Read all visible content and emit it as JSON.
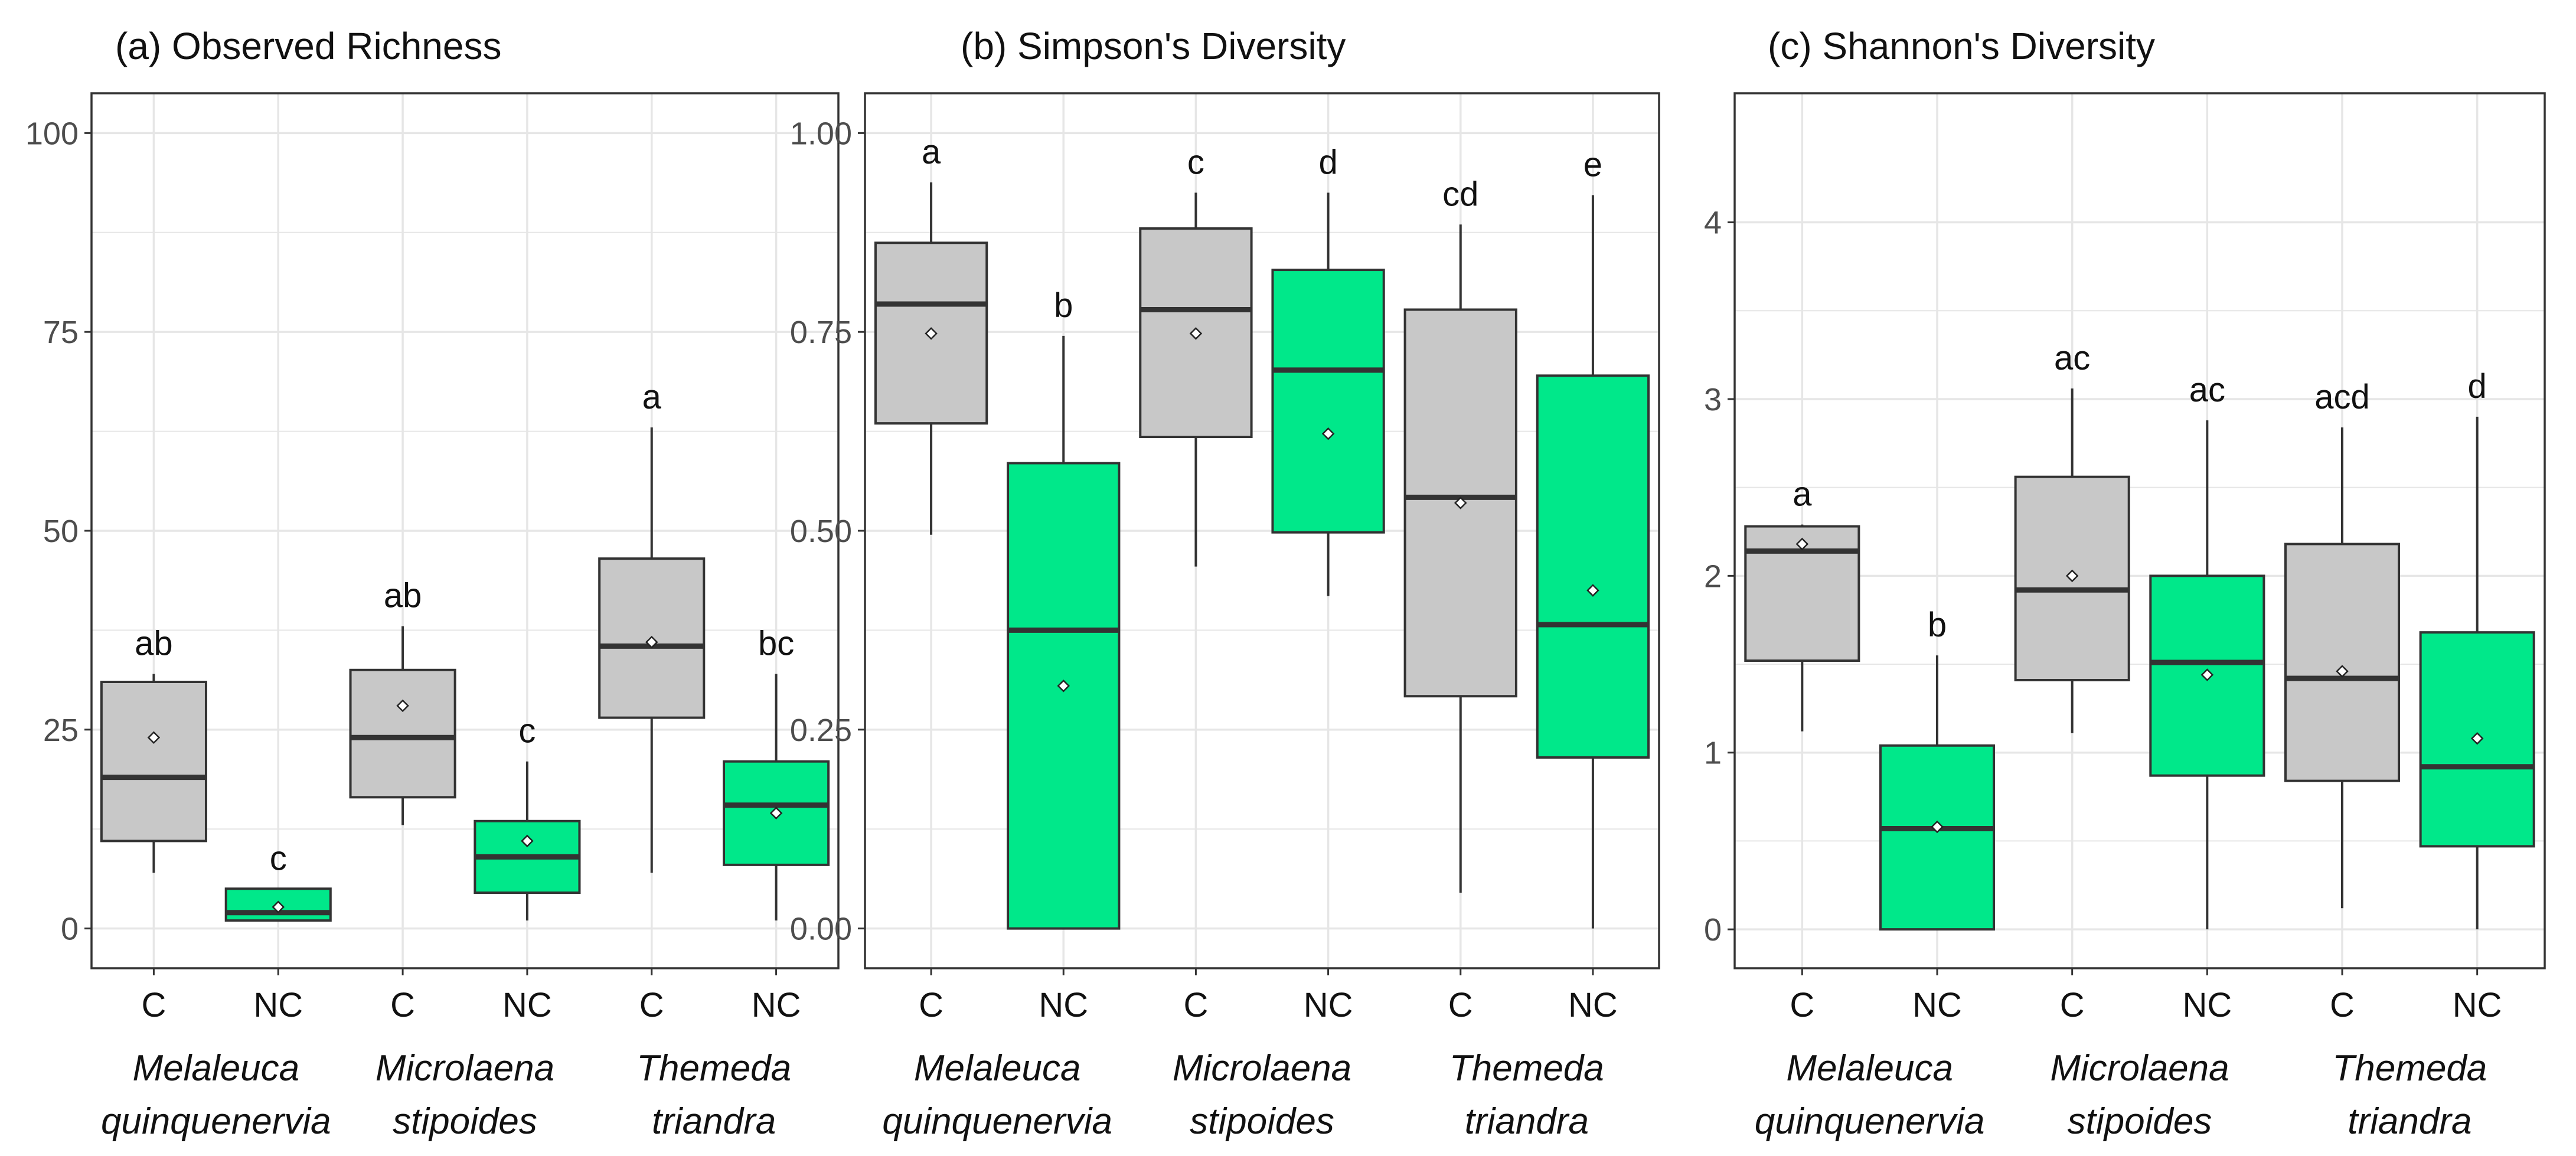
{
  "colors": {
    "control": "#c8c8c8",
    "non_control": "#00e88a",
    "panel_border": "#333333",
    "grid": "#e6e6e6",
    "median": "#333333"
  },
  "chart_data": [
    {
      "type": "box",
      "title": "(a) Observed Richness",
      "ylim": [
        -5,
        105
      ],
      "yticks": [
        0,
        25,
        50,
        75,
        100
      ],
      "ytick_labels": [
        "0",
        "25",
        "50",
        "75",
        "100"
      ],
      "xtick_labels": [
        "C",
        "NC",
        "C",
        "NC",
        "C",
        "NC"
      ],
      "groups": [
        [
          "Melaleuca",
          "quinquenervia"
        ],
        [
          "Microlaena",
          "stipoides"
        ],
        [
          "Themeda",
          "triandra"
        ]
      ],
      "boxes": [
        {
          "label": "C",
          "treatment": "control",
          "whisker_low": 7,
          "q1": 11,
          "median": 19,
          "q3": 31,
          "whisker_high": 32,
          "mean": 24,
          "letter": "ab"
        },
        {
          "label": "NC",
          "treatment": "non_control",
          "whisker_low": 1,
          "q1": 1,
          "median": 2,
          "q3": 5,
          "whisker_high": 5,
          "mean": 2.7,
          "letter": "c"
        },
        {
          "label": "C",
          "treatment": "control",
          "whisker_low": 13,
          "q1": 16.5,
          "median": 24,
          "q3": 32.5,
          "whisker_high": 38,
          "mean": 28,
          "letter": "ab"
        },
        {
          "label": "NC",
          "treatment": "non_control",
          "whisker_low": 1,
          "q1": 4.5,
          "median": 9,
          "q3": 13.5,
          "whisker_high": 21,
          "mean": 11,
          "letter": "c"
        },
        {
          "label": "C",
          "treatment": "control",
          "whisker_low": 7,
          "q1": 26.5,
          "median": 35.5,
          "q3": 46.5,
          "whisker_high": 63,
          "mean": 36,
          "letter": "a"
        },
        {
          "label": "NC",
          "treatment": "non_control",
          "whisker_low": 1,
          "q1": 8,
          "median": 15.5,
          "q3": 21,
          "whisker_high": 32,
          "mean": 14.5,
          "letter": "bc"
        }
      ]
    },
    {
      "type": "box",
      "title": "(b) Simpson's Diversity",
      "ylim": [
        -0.05,
        1.05
      ],
      "yticks": [
        0,
        0.25,
        0.5,
        0.75,
        1
      ],
      "ytick_labels": [
        "0.00",
        "0.25",
        "0.50",
        "0.75",
        "1.00"
      ],
      "xtick_labels": [
        "C",
        "NC",
        "C",
        "NC",
        "C",
        "NC"
      ],
      "groups": [
        [
          "Melaleuca",
          "quinquenervia"
        ],
        [
          "Microlaena",
          "stipoides"
        ],
        [
          "Themeda",
          "triandra"
        ]
      ],
      "boxes": [
        {
          "label": "C",
          "treatment": "control",
          "whisker_low": 0.495,
          "q1": 0.635,
          "median": 0.785,
          "q3": 0.862,
          "whisker_high": 0.938,
          "mean": 0.748,
          "letter": "a"
        },
        {
          "label": "NC",
          "treatment": "non_control",
          "whisker_low": 0,
          "q1": 0,
          "median": 0.375,
          "q3": 0.585,
          "whisker_high": 0.745,
          "mean": 0.305,
          "letter": "b"
        },
        {
          "label": "C",
          "treatment": "control",
          "whisker_low": 0.455,
          "q1": 0.618,
          "median": 0.778,
          "q3": 0.88,
          "whisker_high": 0.925,
          "mean": 0.748,
          "letter": "c"
        },
        {
          "label": "NC",
          "treatment": "non_control",
          "whisker_low": 0.418,
          "q1": 0.498,
          "median": 0.702,
          "q3": 0.828,
          "whisker_high": 0.925,
          "mean": 0.622,
          "letter": "d"
        },
        {
          "label": "C",
          "treatment": "control",
          "whisker_low": 0.045,
          "q1": 0.292,
          "median": 0.542,
          "q3": 0.778,
          "whisker_high": 0.885,
          "mean": 0.535,
          "letter": "cd"
        },
        {
          "label": "NC",
          "treatment": "non_control",
          "whisker_low": 0,
          "q1": 0.215,
          "median": 0.382,
          "q3": 0.695,
          "whisker_high": 0.922,
          "mean": 0.425,
          "letter": "e"
        }
      ]
    },
    {
      "type": "box",
      "title": "(c) Shannon's Diversity",
      "ylim": [
        -0.22,
        4.73
      ],
      "yticks": [
        0,
        1,
        2,
        3,
        4
      ],
      "ytick_labels": [
        "0",
        "1",
        "2",
        "3",
        "4"
      ],
      "xtick_labels": [
        "C",
        "NC",
        "C",
        "NC",
        "C",
        "NC"
      ],
      "groups": [
        [
          "Melaleuca",
          "quinquenervia"
        ],
        [
          "Microlaena",
          "stipoides"
        ],
        [
          "Themeda",
          "triandra"
        ]
      ],
      "boxes": [
        {
          "label": "C",
          "treatment": "control",
          "whisker_low": 1.12,
          "q1": 1.52,
          "median": 2.14,
          "q3": 2.28,
          "whisker_high": 2.29,
          "mean": 2.18,
          "letter": "a"
        },
        {
          "label": "NC",
          "treatment": "non_control",
          "whisker_low": 0,
          "q1": 0,
          "median": 0.57,
          "q3": 1.04,
          "whisker_high": 1.55,
          "mean": 0.58,
          "letter": "b"
        },
        {
          "label": "C",
          "treatment": "control",
          "whisker_low": 1.11,
          "q1": 1.41,
          "median": 1.92,
          "q3": 2.56,
          "whisker_high": 3.06,
          "mean": 2.0,
          "letter": "ac"
        },
        {
          "label": "NC",
          "treatment": "non_control",
          "whisker_low": 0,
          "q1": 0.87,
          "median": 1.51,
          "q3": 2.0,
          "whisker_high": 2.88,
          "mean": 1.44,
          "letter": "ac"
        },
        {
          "label": "C",
          "treatment": "control",
          "whisker_low": 0.12,
          "q1": 0.84,
          "median": 1.42,
          "q3": 2.18,
          "whisker_high": 2.84,
          "mean": 1.46,
          "letter": "acd"
        },
        {
          "label": "NC",
          "treatment": "non_control",
          "whisker_low": 0,
          "q1": 0.47,
          "median": 0.92,
          "q3": 1.68,
          "whisker_high": 2.9,
          "mean": 1.08,
          "letter": "d"
        }
      ]
    }
  ]
}
